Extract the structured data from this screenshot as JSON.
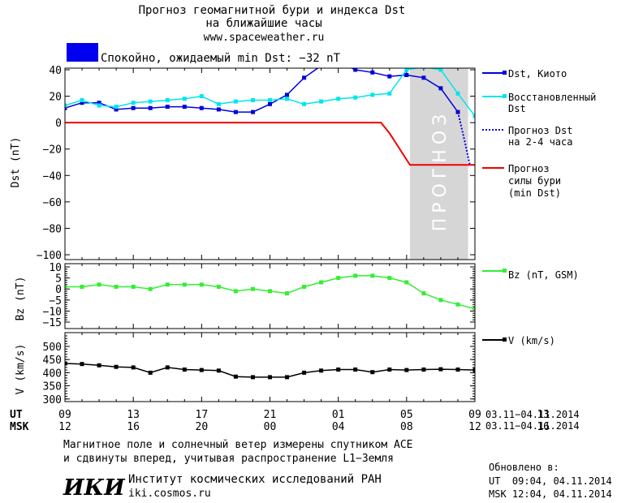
{
  "header": {
    "title_line1": "Прогноз геомагнитной бури и индекса Dst",
    "title_line2": "на ближайшие часы",
    "site": "www.spaceweather.ru",
    "status": "Спокойно, ожидаемый min Dst: −32 nT",
    "status_color": "#0000ee"
  },
  "forecast_label": "ПРОГНОЗ",
  "time_axis": {
    "ut_label": "UT",
    "msk_label": "MSK",
    "ut_ticks": [
      "09",
      "13",
      "17",
      "21",
      "01",
      "05",
      "09",
      "13"
    ],
    "msk_ticks": [
      "12",
      "16",
      "20",
      "00",
      "04",
      "08",
      "12",
      "16"
    ],
    "ut_range": "03.11−04.11.2014",
    "msk_range": "03.11−04.11.2014"
  },
  "footer": {
    "note_line1": "Магнитное поле и солнечный ветер измерены спутником ACE",
    "note_line2": "и сдвинуты вперед, учитывая распространение L1−Земля",
    "logo_text": "ИКИ",
    "institute": "Институт космических исследований РАН",
    "institute_site": "iki.cosmos.ru",
    "updated_label": "Обновлено в:",
    "updated_ut": "UT  09:04, 04.11.2014",
    "updated_msk": "MSK 12:04, 04.11.2014"
  },
  "chart_data": [
    {
      "type": "line",
      "ylabel": "Dst (nT)",
      "ylim": [
        -100,
        40
      ],
      "yticks": [
        40,
        20,
        0,
        -20,
        -40,
        -60,
        -80,
        -100
      ],
      "xlim": [
        9,
        33
      ],
      "forecast_region": [
        29.2,
        32.6
      ],
      "series": [
        {
          "name": "Dst, Киото",
          "color": "#0000dd",
          "style": "solid-square",
          "x": [
            9,
            10,
            11,
            12,
            13,
            14,
            15,
            16,
            17,
            18,
            19,
            20,
            21,
            22,
            23,
            24,
            25,
            26,
            27,
            28,
            29
          ],
          "y": [
            11,
            15,
            15,
            10,
            11,
            11,
            12,
            12,
            11,
            10,
            8,
            8,
            14,
            21,
            34,
            43,
            46,
            40,
            38,
            35,
            36
          ]
        },
        {
          "name": "",
          "color": "#0000dd",
          "style": "solid-square",
          "x": [
            29,
            30,
            31,
            32
          ],
          "y": [
            36,
            34,
            26,
            8
          ]
        },
        {
          "name": "Восстановленный Dst",
          "color": "#00e5ee",
          "style": "solid-square",
          "x": [
            9,
            10,
            11,
            12,
            13,
            14,
            15,
            16,
            17,
            18,
            19,
            20,
            21,
            22,
            23,
            24,
            25,
            26,
            27,
            28,
            29,
            30,
            31,
            32,
            33
          ],
          "y": [
            13,
            17,
            13,
            12,
            15,
            16,
            17,
            18,
            20,
            14,
            16,
            17,
            17,
            18,
            14,
            16,
            18,
            19,
            21,
            22,
            40,
            42,
            40,
            22,
            5
          ]
        },
        {
          "name": "Прогноз Dst на 2-4 часа",
          "color": "#0000dd",
          "style": "dotted",
          "x": [
            32,
            32.4,
            32.7
          ],
          "y": [
            8,
            -14,
            -32
          ]
        },
        {
          "name": "Прогноз силы бури (min Dst)",
          "color": "#ee0000",
          "style": "step",
          "x": [
            9,
            27.5,
            28,
            29.2,
            32.6,
            34
          ],
          "y": [
            0,
            0,
            -8,
            -32,
            -32,
            -32
          ]
        }
      ]
    },
    {
      "type": "line",
      "ylabel": "Bz (nT)",
      "ylim": [
        -15,
        10
      ],
      "yticks": [
        10,
        5,
        0,
        -5,
        -10,
        -15
      ],
      "series": [
        {
          "name": "Bz (nT, GSM)",
          "color": "#33ee33",
          "x": [
            9,
            10,
            11,
            12,
            13,
            14,
            15,
            16,
            17,
            18,
            19,
            20,
            21,
            22,
            23,
            24,
            25,
            26,
            27,
            28,
            29,
            30,
            31,
            32,
            33
          ],
          "y": [
            1,
            1,
            2,
            1,
            1,
            0,
            2,
            2,
            2,
            1,
            -1,
            0,
            -1,
            -2,
            1,
            3,
            5,
            6,
            6,
            5,
            3,
            -2,
            -5,
            -7,
            -9
          ]
        }
      ]
    },
    {
      "type": "line",
      "ylabel": "V (km/s)",
      "ylim": [
        290,
        540
      ],
      "yticks": [
        500,
        450,
        400,
        350,
        300
      ],
      "series": [
        {
          "name": "V (km/s)",
          "color": "#000000",
          "x": [
            9,
            10,
            11,
            12,
            13,
            14,
            15,
            16,
            17,
            18,
            19,
            20,
            21,
            22,
            23,
            24,
            25,
            26,
            27,
            28,
            29,
            30,
            31,
            32,
            33
          ],
          "y": [
            435,
            433,
            428,
            422,
            420,
            400,
            420,
            412,
            410,
            408,
            385,
            383,
            383,
            383,
            400,
            408,
            412,
            412,
            402,
            412,
            410,
            412,
            413,
            412,
            410
          ]
        }
      ]
    }
  ]
}
